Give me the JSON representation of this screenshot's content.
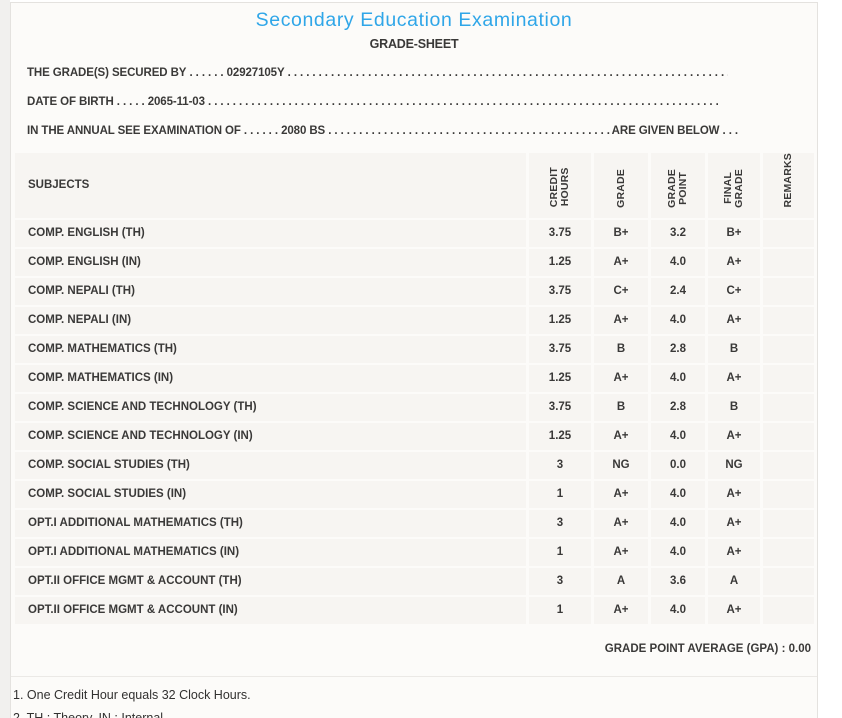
{
  "colors": {
    "title_blue": "#2fa6e8",
    "text_dark": "#3a3938",
    "cell_background": "#f7f5f2"
  },
  "page": {
    "title": "Secondary Education Examination",
    "subtitle": "GRADE-SHEET"
  },
  "info": {
    "secured_by_label": "THE GRADE(S) SECURED BY",
    "secured_by_dots": " . . . . . . ",
    "secured_by_value": "02927105Y",
    "dob_label": "DATE OF BIRTH",
    "dob_dots": " . . . . . ",
    "dob_value": "2065-11-03",
    "exam_label": "IN THE ANNUAL SEE EXAMINATION OF",
    "exam_dots": " . . . . . . ",
    "exam_value": "2080 BS",
    "exam_suffix": "ARE GIVEN BELOW . . .",
    "dots_fill": " . . . . . . . . . . . . . . . . . . . . . . . . . . . . . . . . . . . . . . . . . . . . . . . . . . . . . . . . . . . . . . . . . . . . . . . . . . . . . . . . . . . . . . . . . . . . . . . . . . . . . . . . . . . . . . . . . . . . . . . . . . . . . . . ."
  },
  "table": {
    "subjects_header": "SUBJECTS",
    "headers": {
      "credit_hours": [
        "CREDIT",
        "HOURS"
      ],
      "grade": [
        "GRADE"
      ],
      "grade_point": [
        "GRADE",
        "POINT"
      ],
      "final_grade": [
        "FINAL",
        "GRADE"
      ],
      "remarks": [
        "REMARKS"
      ]
    },
    "rows": [
      {
        "subject": "COMP. ENGLISH (TH)",
        "credit": "3.75",
        "grade": "B+",
        "grade_point": "3.2",
        "final_grade": "B+",
        "remarks": ""
      },
      {
        "subject": "COMP. ENGLISH (IN)",
        "credit": "1.25",
        "grade": "A+",
        "grade_point": "4.0",
        "final_grade": "A+",
        "remarks": ""
      },
      {
        "subject": "COMP. NEPALI (TH)",
        "credit": "3.75",
        "grade": "C+",
        "grade_point": "2.4",
        "final_grade": "C+",
        "remarks": ""
      },
      {
        "subject": "COMP. NEPALI (IN)",
        "credit": "1.25",
        "grade": "A+",
        "grade_point": "4.0",
        "final_grade": "A+",
        "remarks": ""
      },
      {
        "subject": "COMP. MATHEMATICS (TH)",
        "credit": "3.75",
        "grade": "B",
        "grade_point": "2.8",
        "final_grade": "B",
        "remarks": ""
      },
      {
        "subject": "COMP. MATHEMATICS (IN)",
        "credit": "1.25",
        "grade": "A+",
        "grade_point": "4.0",
        "final_grade": "A+",
        "remarks": ""
      },
      {
        "subject": "COMP. SCIENCE AND TECHNOLOGY (TH)",
        "credit": "3.75",
        "grade": "B",
        "grade_point": "2.8",
        "final_grade": "B",
        "remarks": ""
      },
      {
        "subject": "COMP. SCIENCE AND TECHNOLOGY (IN)",
        "credit": "1.25",
        "grade": "A+",
        "grade_point": "4.0",
        "final_grade": "A+",
        "remarks": ""
      },
      {
        "subject": "COMP. SOCIAL STUDIES (TH)",
        "credit": "3",
        "grade": "NG",
        "grade_point": "0.0",
        "final_grade": "NG",
        "remarks": ""
      },
      {
        "subject": "COMP. SOCIAL STUDIES (IN)",
        "credit": "1",
        "grade": "A+",
        "grade_point": "4.0",
        "final_grade": "A+",
        "remarks": ""
      },
      {
        "subject": "OPT.I ADDITIONAL MATHEMATICS (TH)",
        "credit": "3",
        "grade": "A+",
        "grade_point": "4.0",
        "final_grade": "A+",
        "remarks": ""
      },
      {
        "subject": "OPT.I ADDITIONAL MATHEMATICS (IN)",
        "credit": "1",
        "grade": "A+",
        "grade_point": "4.0",
        "final_grade": "A+",
        "remarks": ""
      },
      {
        "subject": "OPT.II OFFICE MGMT & ACCOUNT (TH)",
        "credit": "3",
        "grade": "A",
        "grade_point": "3.6",
        "final_grade": "A",
        "remarks": ""
      },
      {
        "subject": "OPT.II OFFICE MGMT & ACCOUNT (IN)",
        "credit": "1",
        "grade": "A+",
        "grade_point": "4.0",
        "final_grade": "A+",
        "remarks": ""
      }
    ]
  },
  "summary": {
    "gpa_label": "GRADE POINT AVERAGE (GPA) :",
    "gpa_value": "0.00"
  },
  "notes": [
    "1. One Credit Hour equals 32 Clock Hours.",
    "2. TH : Theory, IN : Internal"
  ]
}
